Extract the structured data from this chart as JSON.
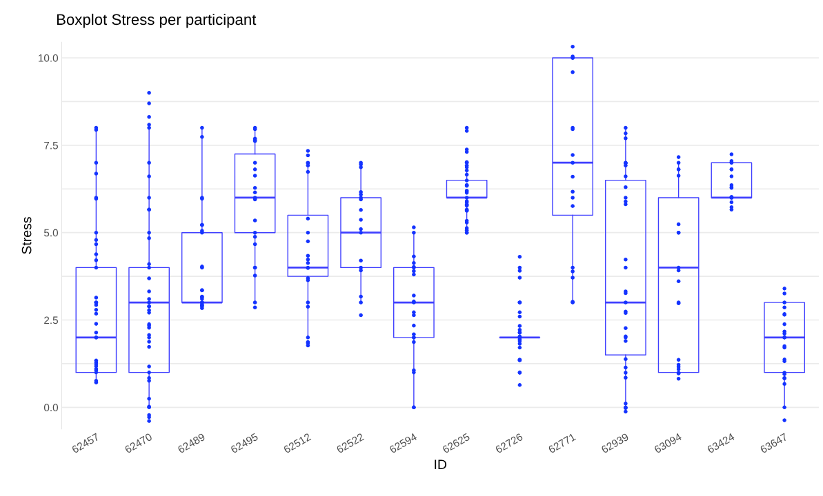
{
  "chart_data": {
    "type": "box",
    "title": "Boxplot Stress per participant",
    "xlabel": "ID",
    "ylabel": "Stress",
    "categories": [
      "62457",
      "62470",
      "62489",
      "62495",
      "62512",
      "62522",
      "62594",
      "62625",
      "62726",
      "62771",
      "62939",
      "63094",
      "63424",
      "63647"
    ],
    "yticks": [
      {
        "value": 0,
        "label": "0.0"
      },
      {
        "value": 1.25,
        "label": null
      },
      {
        "value": 2.5,
        "label": "2.5"
      },
      {
        "value": 3.75,
        "label": null
      },
      {
        "value": 5,
        "label": "5.0"
      },
      {
        "value": 6.25,
        "label": null
      },
      {
        "value": 7.5,
        "label": "7.5"
      },
      {
        "value": 8.75,
        "label": null
      },
      {
        "value": 10,
        "label": "10.0"
      }
    ],
    "ylim": [
      -0.62,
      10.45
    ],
    "grid": "y",
    "series": [
      {
        "color": "#3f3fff",
        "boxes": [
          {
            "low": 0.7,
            "q1": 1,
            "median": 2,
            "q3": 4,
            "high": 8
          },
          {
            "low": 0,
            "q1": 1,
            "median": 3,
            "q3": 4,
            "high": 8
          },
          {
            "low": 3,
            "q1": 3,
            "median": 3,
            "q3": 5,
            "high": 8
          },
          {
            "low": 3,
            "q1": 5,
            "median": 6,
            "q3": 7.25,
            "high": 8
          },
          {
            "low": 2,
            "q1": 3.75,
            "median": 4,
            "q3": 5.5,
            "high": 7
          },
          {
            "low": 3,
            "q1": 4,
            "median": 5,
            "q3": 6,
            "high": 7
          },
          {
            "low": 0,
            "q1": 2,
            "median": 3,
            "q3": 4,
            "high": 5
          },
          {
            "low": 5,
            "q1": 6,
            "median": 6,
            "q3": 6.5,
            "high": 7
          },
          {
            "low": 2,
            "q1": 2,
            "median": 2,
            "q3": 2,
            "high": 2
          },
          {
            "low": 3,
            "q1": 5.5,
            "median": 7,
            "q3": 10,
            "high": 10
          },
          {
            "low": 0,
            "q1": 1.5,
            "median": 3,
            "q3": 6.5,
            "high": 8
          },
          {
            "low": 1,
            "q1": 1,
            "median": 4,
            "q3": 6,
            "high": 7
          },
          {
            "low": 6,
            "q1": 6,
            "median": 6,
            "q3": 7,
            "high": 7
          },
          {
            "low": 0,
            "q1": 1,
            "median": 2,
            "q3": 3,
            "high": 3
          }
        ]
      },
      {
        "type": "scatter",
        "color": "#1433ff",
        "x": [
          "62457",
          "62457",
          "62457",
          "62457",
          "62457",
          "62457",
          "62457",
          "62457",
          "62457",
          "62457",
          "62457",
          "62457",
          "62457",
          "62457",
          "62457",
          "62457",
          "62457",
          "62457",
          "62457",
          "62457",
          "62457",
          "62457",
          "62457",
          "62457",
          "62457",
          "62457",
          "62457",
          "62457",
          "62457",
          "62457",
          "62457",
          "62470",
          "62470",
          "62470",
          "62470",
          "62470",
          "62470",
          "62470",
          "62470",
          "62470",
          "62470",
          "62470",
          "62470",
          "62470",
          "62470",
          "62470",
          "62470",
          "62470",
          "62470",
          "62470",
          "62470",
          "62470",
          "62470",
          "62470",
          "62470",
          "62470",
          "62470",
          "62470",
          "62470",
          "62470",
          "62470",
          "62470",
          "62470",
          "62470",
          "62470",
          "62470",
          "62470",
          "62470",
          "62470",
          "62470",
          "62489",
          "62489",
          "62489",
          "62489",
          "62489",
          "62489",
          "62489",
          "62489",
          "62489",
          "62489",
          "62489",
          "62489",
          "62489",
          "62489",
          "62489",
          "62489",
          "62489",
          "62489",
          "62489",
          "62489",
          "62489",
          "62495",
          "62495",
          "62495",
          "62495",
          "62495",
          "62495",
          "62495",
          "62495",
          "62495",
          "62495",
          "62495",
          "62495",
          "62495",
          "62495",
          "62495",
          "62495",
          "62495",
          "62495",
          "62495",
          "62495",
          "62495",
          "62495",
          "62512",
          "62512",
          "62512",
          "62512",
          "62512",
          "62512",
          "62512",
          "62512",
          "62512",
          "62512",
          "62512",
          "62512",
          "62512",
          "62512",
          "62512",
          "62512",
          "62512",
          "62512",
          "62512",
          "62512",
          "62512",
          "62512",
          "62522",
          "62522",
          "62522",
          "62522",
          "62522",
          "62522",
          "62522",
          "62522",
          "62522",
          "62522",
          "62522",
          "62522",
          "62522",
          "62522",
          "62522",
          "62522",
          "62522",
          "62594",
          "62594",
          "62594",
          "62594",
          "62594",
          "62594",
          "62594",
          "62594",
          "62594",
          "62594",
          "62594",
          "62594",
          "62594",
          "62594",
          "62594",
          "62594",
          "62594",
          "62594",
          "62594",
          "62594",
          "62594",
          "62594",
          "62625",
          "62625",
          "62625",
          "62625",
          "62625",
          "62625",
          "62625",
          "62625",
          "62625",
          "62625",
          "62625",
          "62625",
          "62625",
          "62625",
          "62625",
          "62625",
          "62625",
          "62625",
          "62625",
          "62625",
          "62625",
          "62625",
          "62625",
          "62625",
          "62625",
          "62625",
          "62625",
          "62625",
          "62625",
          "62625",
          "62625",
          "62625",
          "62726",
          "62726",
          "62726",
          "62726",
          "62726",
          "62726",
          "62726",
          "62726",
          "62726",
          "62726",
          "62726",
          "62726",
          "62726",
          "62726",
          "62726",
          "62726",
          "62726",
          "62726",
          "62726",
          "62726",
          "62726",
          "62726",
          "62726",
          "62726",
          "62726",
          "62726",
          "62771",
          "62771",
          "62771",
          "62771",
          "62771",
          "62771",
          "62771",
          "62771",
          "62771",
          "62771",
          "62771",
          "62771",
          "62771",
          "62771",
          "62771",
          "62771",
          "62771",
          "62771",
          "62939",
          "62939",
          "62939",
          "62939",
          "62939",
          "62939",
          "62939",
          "62939",
          "62939",
          "62939",
          "62939",
          "62939",
          "62939",
          "62939",
          "62939",
          "62939",
          "62939",
          "62939",
          "62939",
          "62939",
          "62939",
          "62939",
          "62939",
          "62939",
          "62939",
          "62939",
          "62939",
          "62939",
          "62939",
          "62939",
          "62939",
          "62939",
          "63094",
          "63094",
          "63094",
          "63094",
          "63094",
          "63094",
          "63094",
          "63094",
          "63094",
          "63094",
          "63094",
          "63094",
          "63094",
          "63094",
          "63094",
          "63094",
          "63094",
          "63094",
          "63094",
          "63094",
          "63424",
          "63424",
          "63424",
          "63424",
          "63424",
          "63424",
          "63424",
          "63424",
          "63424",
          "63424",
          "63424",
          "63424",
          "63424",
          "63424",
          "63424",
          "63424",
          "63424",
          "63647",
          "63647",
          "63647",
          "63647",
          "63647",
          "63647",
          "63647",
          "63647",
          "63647",
          "63647",
          "63647",
          "63647",
          "63647",
          "63647",
          "63647",
          "63647",
          "63647",
          "63647",
          "63647",
          "63647",
          "63647",
          "63647"
        ],
        "values": [
          7.94,
          8.0,
          7.0,
          6.69,
          6.0,
          5.97,
          5.0,
          4.79,
          4.67,
          4.38,
          4.21,
          4.0,
          3.14,
          3.0,
          3.0,
          2.93,
          2.79,
          2.68,
          2.39,
          2.14,
          2.0,
          2.0,
          1.34,
          1.29,
          1.24,
          1.18,
          1.1,
          1.06,
          1.0,
          0.76,
          0.71,
          9.0,
          8.7,
          8.31,
          8.09,
          8.0,
          7.0,
          6.61,
          6.0,
          5.66,
          5.66,
          5.0,
          4.84,
          4.1,
          4.0,
          3.69,
          3.32,
          3.1,
          3.0,
          2.89,
          2.89,
          2.78,
          2.71,
          2.38,
          2.34,
          2.28,
          2.07,
          2.0,
          1.88,
          1.73,
          1.17,
          1.0,
          0.84,
          0.76,
          0.25,
          0.02,
          0.0,
          -0.22,
          -0.28,
          -0.39,
          8.0,
          7.74,
          6.0,
          5.97,
          5.22,
          5.22,
          5.05,
          5.0,
          4.03,
          4.0,
          3.35,
          3.35,
          3.17,
          3.15,
          3.1,
          3.0,
          3.0,
          2.94,
          2.92,
          2.89,
          2.84,
          8.0,
          7.96,
          7.69,
          7.65,
          7.62,
          7.0,
          6.81,
          6.63,
          6.28,
          6.15,
          6.0,
          5.98,
          5.95,
          5.35,
          5.0,
          4.88,
          4.67,
          4.0,
          4.0,
          3.77,
          3.0,
          2.86,
          7.34,
          7.21,
          7.0,
          6.99,
          6.92,
          6.74,
          5.4,
          5.0,
          4.75,
          4.34,
          4.23,
          4.13,
          4.0,
          3.99,
          3.7,
          3.64,
          3.0,
          2.88,
          2.0,
          1.87,
          1.84,
          1.77,
          7.0,
          6.95,
          6.87,
          6.16,
          6.09,
          6.0,
          5.95,
          5.65,
          5.37,
          5.1,
          5.0,
          4.2,
          4.0,
          3.92,
          3.17,
          3.0,
          2.64,
          5.15,
          5.0,
          4.32,
          4.13,
          4.02,
          4.0,
          3.9,
          3.8,
          3.2,
          3.0,
          3.03,
          2.72,
          2.64,
          2.34,
          2.09,
          2.0,
          2.0,
          1.87,
          1.06,
          1.0,
          0.0,
          0.0,
          8.0,
          7.91,
          7.38,
          7.31,
          7.0,
          7.02,
          6.87,
          6.92,
          6.78,
          6.66,
          6.49,
          6.36,
          6.36,
          6.34,
          6.2,
          6.18,
          6.14,
          6.0,
          5.9,
          5.87,
          5.81,
          5.79,
          5.77,
          5.66,
          5.63,
          5.63,
          5.34,
          5.29,
          5.13,
          5.07,
          5.0,
          5.0,
          4.31,
          4.0,
          3.91,
          3.71,
          3.0,
          3.0,
          2.72,
          2.6,
          2.33,
          2.22,
          2.14,
          2.14,
          2.03,
          2.0,
          2.0,
          1.95,
          1.9,
          1.82,
          1.71,
          1.36,
          1.35,
          1.35,
          1.36,
          1.0,
          0.99,
          0.64,
          10.32,
          10.0,
          10.04,
          10.0,
          9.59,
          7.96,
          8.0,
          7.22,
          7.0,
          6.6,
          6.17,
          6.0,
          5.76,
          4.0,
          3.89,
          3.71,
          3.02,
          3.0,
          8.0,
          7.84,
          7.7,
          7.0,
          6.99,
          6.99,
          6.92,
          6.61,
          6.3,
          6.0,
          5.89,
          5.81,
          4.23,
          4.0,
          3.27,
          3.32,
          3.0,
          2.74,
          2.7,
          2.27,
          2.03,
          2.0,
          1.9,
          1.38,
          1.14,
          0.99,
          0.85,
          0.11,
          0.0,
          -0.01,
          -0.02,
          -0.12,
          7.16,
          7.0,
          6.81,
          6.81,
          6.63,
          5.24,
          5.0,
          5.0,
          4.0,
          3.92,
          3.61,
          2.98,
          3.0,
          1.36,
          1.22,
          1.16,
          1.09,
          0.99,
          0.97,
          0.82,
          7.24,
          7.05,
          7.0,
          7.01,
          6.81,
          6.81,
          6.61,
          6.36,
          6.28,
          6.3,
          6.02,
          6.0,
          6.0,
          6.02,
          5.87,
          5.73,
          5.66,
          3.4,
          3.26,
          3.0,
          2.86,
          2.65,
          2.67,
          2.38,
          2.17,
          2.11,
          2.0,
          2.0,
          1.75,
          1.71,
          1.37,
          1.32,
          0.99,
          0.95,
          0.84,
          0.83,
          0.67,
          0.0,
          -0.37
        ]
      }
    ]
  }
}
